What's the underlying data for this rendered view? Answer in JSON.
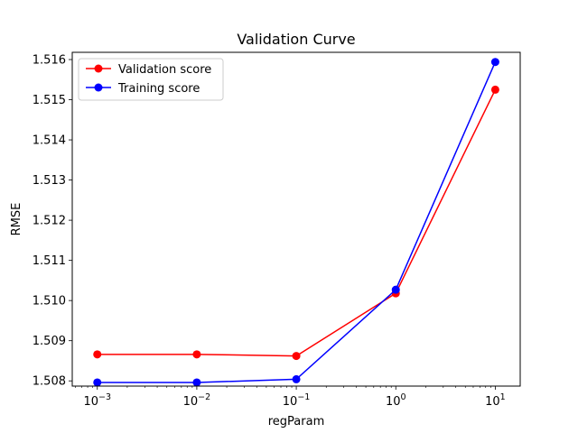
{
  "chart_data": {
    "type": "line",
    "title": "Validation Curve",
    "xlabel": "regParam",
    "ylabel": "RMSE",
    "xscale": "log",
    "x": [
      0.001,
      0.01,
      0.1,
      1,
      10
    ],
    "xlim": [
      0.00056,
      17.8
    ],
    "ylim": [
      1.50787,
      1.51618
    ],
    "x_ticks": [
      {
        "value": 0.001,
        "base": "10",
        "exp": "−3"
      },
      {
        "value": 0.01,
        "base": "10",
        "exp": "−2"
      },
      {
        "value": 0.1,
        "base": "10",
        "exp": "−1"
      },
      {
        "value": 1,
        "base": "10",
        "exp": "0"
      },
      {
        "value": 10,
        "base": "10",
        "exp": "1"
      }
    ],
    "y_ticks": [
      {
        "value": 1.508,
        "label": "1.508"
      },
      {
        "value": 1.509,
        "label": "1.509"
      },
      {
        "value": 1.51,
        "label": "1.510"
      },
      {
        "value": 1.511,
        "label": "1.511"
      },
      {
        "value": 1.512,
        "label": "1.512"
      },
      {
        "value": 1.513,
        "label": "1.513"
      },
      {
        "value": 1.514,
        "label": "1.514"
      },
      {
        "value": 1.515,
        "label": "1.515"
      },
      {
        "value": 1.516,
        "label": "1.516"
      }
    ],
    "series": [
      {
        "name": "Validation score",
        "color": "#ff0000",
        "values": [
          1.50866,
          1.50866,
          1.50862,
          1.51018,
          1.51525
        ]
      },
      {
        "name": "Training score",
        "color": "#0000ff",
        "values": [
          1.50796,
          1.50796,
          1.50804,
          1.51027,
          1.51594
        ]
      }
    ],
    "legend": "top-left",
    "grid": false
  }
}
